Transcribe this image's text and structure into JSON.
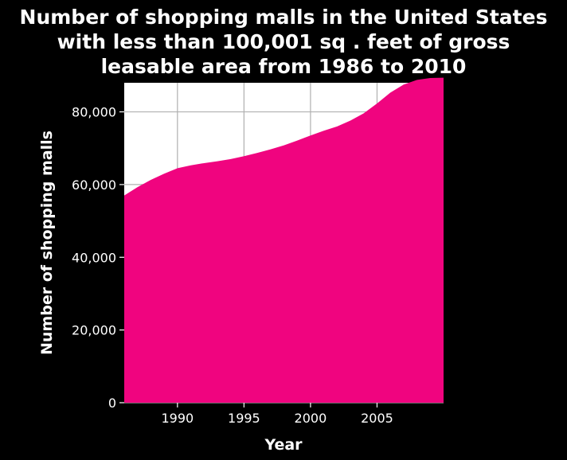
{
  "chart_data": {
    "type": "area",
    "title_lines": [
      "Number of shopping malls in the United States",
      "with less than 100,001 sq . feet of gross",
      "leasable area from 1986 to 2010"
    ],
    "xlabel": "Year",
    "ylabel": "Number of shopping malls",
    "xlim": [
      1986,
      2010
    ],
    "ylim": [
      0,
      88000
    ],
    "x_ticks": [
      1990,
      1995,
      2000,
      2005
    ],
    "x_tick_labels": [
      "1990",
      "1995",
      "2000",
      "2005"
    ],
    "y_ticks": [
      0,
      20000,
      40000,
      60000,
      80000
    ],
    "y_tick_labels": [
      "0",
      "20,000",
      "40,000",
      "60,000",
      "80,000"
    ],
    "grid": true,
    "series": [
      {
        "x": [
          1986,
          1987,
          1988,
          1989,
          1990,
          1991,
          1992,
          1993,
          1994,
          1995,
          1996,
          1997,
          1998,
          1999,
          2000,
          2001,
          2002,
          2003,
          2004,
          2005,
          2006,
          2007,
          2008,
          2009,
          2010
        ],
        "values": [
          57000,
          59300,
          61300,
          63000,
          64500,
          65300,
          65900,
          66400,
          67000,
          67800,
          68700,
          69700,
          70800,
          72100,
          73500,
          74800,
          76000,
          77600,
          79600,
          82300,
          85300,
          87500,
          88800,
          89300,
          89400
        ]
      }
    ],
    "colors": {
      "background": "#000000",
      "plot_area": "#ffffff",
      "fill": "#f0047f",
      "grid": "#b0b0b0",
      "text": "#ffffff"
    }
  }
}
